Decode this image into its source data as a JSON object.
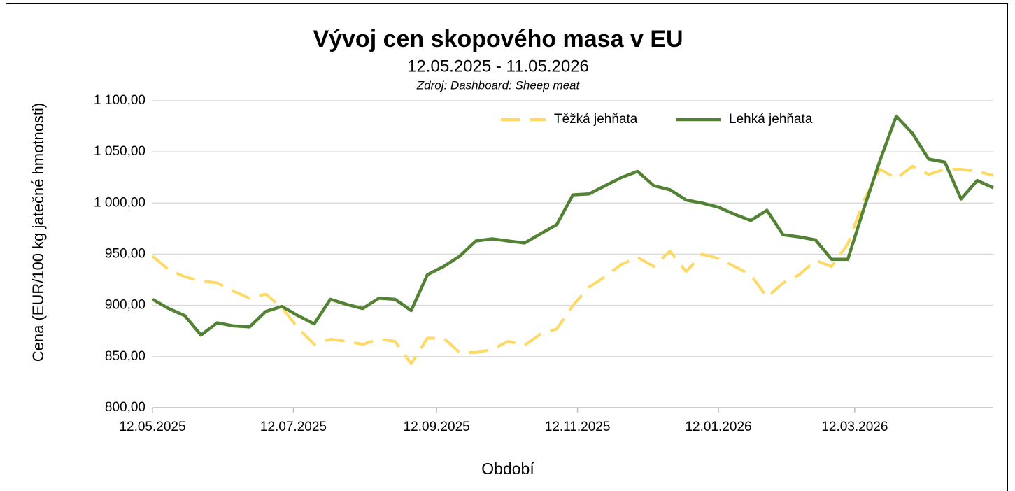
{
  "chart_data": {
    "type": "line",
    "title": "Vývoj cen skopového masa v EU",
    "subtitle": "12.05.2025 - 11.05.2026",
    "source": "Zdroj: Dashboard: Sheep meat",
    "x_label": "Období",
    "y_label": "Cena (EUR/100 kg jatečné hmotnosti)",
    "x": [
      "12.05.2025",
      "19.05.2025",
      "26.05.2025",
      "02.06.2025",
      "09.06.2025",
      "16.06.2025",
      "23.06.2025",
      "30.06.2025",
      "07.07.2025",
      "14.07.2025",
      "21.07.2025",
      "28.07.2025",
      "04.08.2025",
      "11.08.2025",
      "18.08.2025",
      "25.08.2025",
      "01.09.2025",
      "08.09.2025",
      "15.09.2025",
      "22.09.2025",
      "29.09.2025",
      "06.10.2025",
      "13.10.2025",
      "20.10.2025",
      "27.10.2025",
      "03.11.2025",
      "10.11.2025",
      "17.11.2025",
      "24.11.2025",
      "01.12.2025",
      "08.12.2025",
      "15.12.2025",
      "22.12.2025",
      "29.12.2025",
      "05.01.2026",
      "12.01.2026",
      "19.01.2026",
      "26.01.2026",
      "02.02.2026",
      "09.02.2026",
      "16.02.2026",
      "23.02.2026",
      "02.03.2026",
      "09.03.2026",
      "16.03.2026",
      "23.03.2026",
      "30.03.2026",
      "06.04.2026",
      "13.04.2026",
      "20.04.2026",
      "27.04.2026",
      "04.05.2026",
      "11.05.2026"
    ],
    "series": [
      {
        "name": "Těžká jehňata",
        "color": "#ffd966",
        "dashed": true,
        "values": [
          948,
          935,
          928,
          924,
          922,
          914,
          907,
          911,
          898,
          878,
          862,
          867,
          865,
          862,
          867,
          865,
          843,
          868,
          868,
          854,
          854,
          857,
          865,
          861,
          872,
          877,
          900,
          918,
          928,
          940,
          947,
          938,
          953,
          933,
          950,
          946,
          938,
          930,
          908,
          922,
          930,
          944,
          938,
          960,
          1003,
          1033,
          1024,
          1036,
          1028,
          1033,
          1033,
          1031,
          1027
        ]
      },
      {
        "name": "Lehká jehňata",
        "color": "#548235",
        "dashed": false,
        "values": [
          906,
          897,
          890,
          871,
          883,
          880,
          879,
          894,
          899,
          890,
          882,
          906,
          901,
          897,
          907,
          906,
          895,
          930,
          938,
          948,
          963,
          965,
          963,
          961,
          970,
          979,
          1008,
          1009,
          1017,
          1025,
          1031,
          1017,
          1013,
          1003,
          1000,
          996,
          989,
          983,
          993,
          969,
          967,
          964,
          945,
          945,
          995,
          1042,
          1085,
          1068,
          1043,
          1040,
          1004,
          1022,
          1015
        ]
      }
    ],
    "xlim": [
      "12.05.2025",
      "11.05.2026"
    ],
    "xticks": [
      "12.05.2025",
      "12.07.2025",
      "12.09.2025",
      "12.11.2025",
      "12.01.2026",
      "12.03.2026"
    ],
    "ylim": [
      800,
      1100
    ],
    "yticks": [
      {
        "value": 800,
        "label": "800,00"
      },
      {
        "value": 850,
        "label": "850,00"
      },
      {
        "value": 900,
        "label": "900,00"
      },
      {
        "value": 950,
        "label": "950,00"
      },
      {
        "value": 1000,
        "label": "1 000,00"
      },
      {
        "value": 1050,
        "label": "1 050,00"
      },
      {
        "value": 1100,
        "label": "1 100,00"
      }
    ],
    "grid": true
  }
}
